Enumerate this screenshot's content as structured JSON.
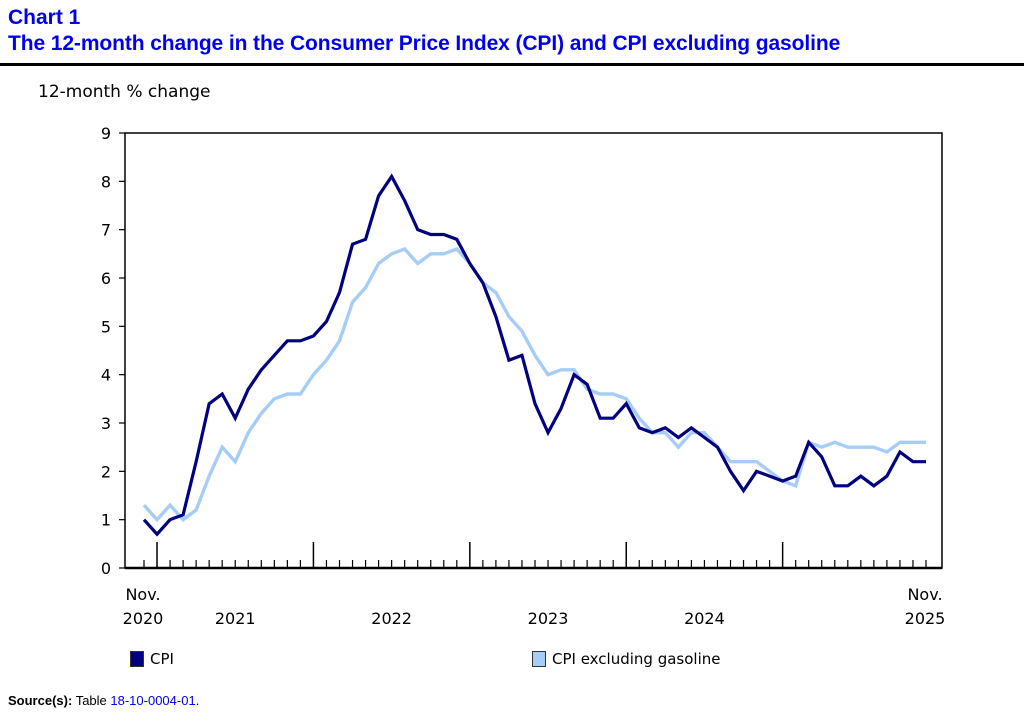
{
  "header": {
    "chart_label": "Chart 1",
    "title": "The 12-month change in the Consumer Price Index (CPI) and CPI excluding gasoline"
  },
  "legend": [
    {
      "label": "CPI",
      "color": "#000080"
    },
    {
      "label": "CPI excluding gasoline",
      "color": "#a6cdf8"
    }
  ],
  "source": {
    "lead": "Source(s):",
    "prefix": "Table",
    "link_text": "18-10-0004-01",
    "suffix": "."
  },
  "chart_data": {
    "type": "line",
    "title": "The 12-month change in the Consumer Price Index (CPI) and CPI excluding gasoline",
    "xlabel": "",
    "ylabel": "12-month % change",
    "ylim": [
      0,
      9
    ],
    "yticks": [
      0,
      1,
      2,
      3,
      4,
      5,
      6,
      7,
      8,
      9
    ],
    "grid": false,
    "legend_position": "bottom",
    "x_start": "2020-11",
    "x_end": "2025-11",
    "x_tick_labels": [
      {
        "month_index": 0,
        "lines": [
          "Nov.",
          "2020"
        ]
      },
      {
        "month_index": 7,
        "lines": [
          "",
          "2021"
        ]
      },
      {
        "month_index": 19,
        "lines": [
          "",
          "2022"
        ]
      },
      {
        "month_index": 31,
        "lines": [
          "",
          "2023"
        ]
      },
      {
        "month_index": 43,
        "lines": [
          "",
          "2024"
        ]
      },
      {
        "month_index": 60,
        "lines": [
          "Nov.",
          "2025"
        ]
      }
    ],
    "x": [
      "2020-11",
      "2020-12",
      "2021-01",
      "2021-02",
      "2021-03",
      "2021-04",
      "2021-05",
      "2021-06",
      "2021-07",
      "2021-08",
      "2021-09",
      "2021-10",
      "2021-11",
      "2021-12",
      "2022-01",
      "2022-02",
      "2022-03",
      "2022-04",
      "2022-05",
      "2022-06",
      "2022-07",
      "2022-08",
      "2022-09",
      "2022-10",
      "2022-11",
      "2022-12",
      "2023-01",
      "2023-02",
      "2023-03",
      "2023-04",
      "2023-05",
      "2023-06",
      "2023-07",
      "2023-08",
      "2023-09",
      "2023-10",
      "2023-11",
      "2023-12",
      "2024-01",
      "2024-02",
      "2024-03",
      "2024-04",
      "2024-05",
      "2024-06",
      "2024-07",
      "2024-08",
      "2024-09",
      "2024-10",
      "2024-11",
      "2024-12",
      "2025-01",
      "2025-02",
      "2025-03",
      "2025-04",
      "2025-05",
      "2025-06",
      "2025-07",
      "2025-08",
      "2025-09",
      "2025-10",
      "2025-11"
    ],
    "series": [
      {
        "name": "CPI",
        "color": "#000080",
        "values": [
          1.0,
          0.7,
          1.0,
          1.1,
          2.2,
          3.4,
          3.6,
          3.1,
          3.7,
          4.1,
          4.4,
          4.7,
          4.7,
          4.8,
          5.1,
          5.7,
          6.7,
          6.8,
          7.7,
          8.1,
          7.6,
          7.0,
          6.9,
          6.9,
          6.8,
          6.3,
          5.9,
          5.2,
          4.3,
          4.4,
          3.4,
          2.8,
          3.3,
          4.0,
          3.8,
          3.1,
          3.1,
          3.4,
          2.9,
          2.8,
          2.9,
          2.7,
          2.9,
          2.7,
          2.5,
          2.0,
          1.6,
          2.0,
          1.9,
          1.8,
          1.9,
          2.6,
          2.3,
          1.7,
          1.7,
          1.9,
          1.7,
          1.9,
          2.4,
          2.2,
          2.2
        ]
      },
      {
        "name": "CPI excluding gasoline",
        "color": "#a6cdf8",
        "values": [
          1.3,
          1.0,
          1.3,
          1.0,
          1.2,
          1.9,
          2.5,
          2.2,
          2.8,
          3.2,
          3.5,
          3.6,
          3.6,
          4.0,
          4.3,
          4.7,
          5.5,
          5.8,
          6.3,
          6.5,
          6.6,
          6.3,
          6.5,
          6.5,
          6.6,
          6.3,
          5.9,
          5.7,
          5.2,
          4.9,
          4.4,
          4.0,
          4.1,
          4.1,
          3.7,
          3.6,
          3.6,
          3.5,
          3.1,
          2.8,
          2.8,
          2.5,
          2.8,
          2.8,
          2.5,
          2.2,
          2.2,
          2.2,
          2.0,
          1.8,
          1.7,
          2.6,
          2.5,
          2.6,
          2.5,
          2.5,
          2.5,
          2.4,
          2.6,
          2.6,
          2.6
        ]
      }
    ]
  }
}
